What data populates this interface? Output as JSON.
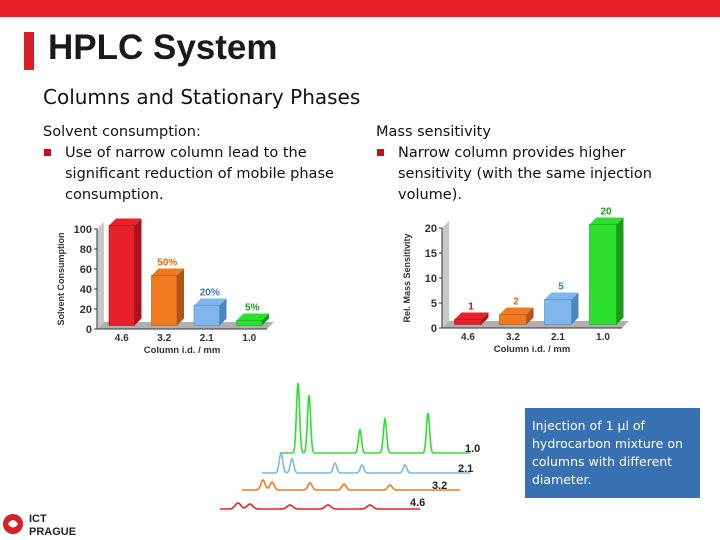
{
  "slide": {
    "title": "HPLC System",
    "subtitle": "Columns and Stationary Phases"
  },
  "left_text": {
    "heading": "Solvent consumption:",
    "bullet": "Use of narrow column lead to the significant reduction of mobile phase consumption."
  },
  "right_text": {
    "heading": "Mass sensitivity",
    "bullet": "Narrow column provides higher sensitivity (with the same injection volume)."
  },
  "caption": "Injection of 1 µl of hydrocarbon mixture on columns with different diameter.",
  "logo": {
    "line1": "ICT",
    "line2": "PRAGUE"
  },
  "colors": {
    "red": "#e8202a",
    "orange": "#f07a20",
    "blue": "#7fb6ec",
    "green": "#2ee02e",
    "caption_bg": "#3871b2"
  },
  "chart_data": [
    {
      "type": "bar",
      "ylabel": "Solvent Consumption",
      "xlabel": "Column i.d. / mm",
      "categories": [
        "4.6",
        "3.2",
        "2.1",
        "1.0"
      ],
      "values": [
        100,
        50,
        20,
        5
      ],
      "data_labels": [
        "",
        "50%",
        "20%",
        "5%"
      ],
      "yticks": [
        "0",
        "20",
        "40",
        "60",
        "80",
        "100"
      ],
      "ylim": [
        0,
        100
      ]
    },
    {
      "type": "bar",
      "ylabel": "Rel. Mass Sensitivity",
      "xlabel": "Column i.d. / mm",
      "categories": [
        "4.6",
        "3.2",
        "2.1",
        "1.0"
      ],
      "values": [
        1,
        2,
        5,
        20
      ],
      "data_labels": [
        "1",
        "2",
        "5",
        "20"
      ],
      "yticks": [
        "0",
        "5",
        "10",
        "15",
        "20"
      ],
      "ylim": [
        0,
        20
      ]
    },
    {
      "type": "line",
      "series": [
        {
          "name": "1.0"
        },
        {
          "name": "2.1"
        },
        {
          "name": "3.2"
        },
        {
          "name": "4.6"
        }
      ]
    }
  ]
}
